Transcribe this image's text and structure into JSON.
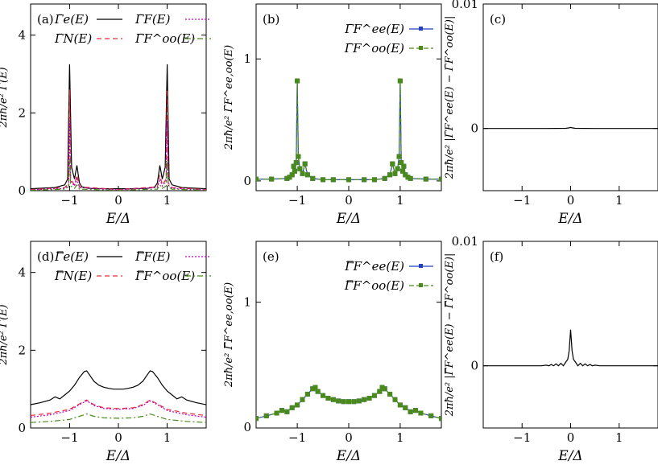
{
  "chart_data": [
    {
      "panel": "(a)",
      "type": "line",
      "xlabel": "E/Δ",
      "ylabel": "2πħ/e² Γ̄(E)",
      "xlim": [
        -1.8,
        1.8
      ],
      "ylim": [
        0,
        4.8
      ],
      "xticks": [
        -1,
        0,
        1
      ],
      "xtick_labels": [
        "−1",
        "0",
        "1"
      ],
      "yticks": [
        0,
        2,
        4
      ],
      "ytick_labels": [
        "0",
        "2",
        "4"
      ],
      "legend_placement": "top",
      "series": [
        {
          "name": "Γ̄e(E)",
          "color": "#000000",
          "dash": "",
          "marker": "",
          "x": [
            -1.8,
            -1.3,
            -1.1,
            -1.04,
            -1.0,
            -0.96,
            -0.9,
            -0.85,
            -0.8,
            -0.75,
            -0.6,
            -0.3,
            0,
            0.3,
            0.6,
            0.75,
            0.8,
            0.85,
            0.9,
            0.96,
            1.0,
            1.04,
            1.1,
            1.3,
            1.8
          ],
          "y": [
            0.05,
            0.08,
            0.15,
            0.3,
            3.25,
            0.6,
            0.3,
            0.65,
            0.2,
            0.1,
            0.06,
            0.05,
            0.05,
            0.05,
            0.06,
            0.1,
            0.2,
            0.65,
            0.3,
            0.6,
            3.25,
            0.3,
            0.15,
            0.08,
            0.05
          ]
        },
        {
          "name": "Γ̄N(E)",
          "color": "#e0303a",
          "dash": "6,4",
          "marker": "",
          "x": [
            -1.8,
            -1.1,
            -1.02,
            -1.0,
            -0.98,
            -0.9,
            -0.85,
            -0.8,
            0,
            0.8,
            0.85,
            0.9,
            0.98,
            1.0,
            1.02,
            1.1,
            1.8
          ],
          "y": [
            0.03,
            0.08,
            0.2,
            2.6,
            0.3,
            0.15,
            0.4,
            0.1,
            0.03,
            0.1,
            0.4,
            0.15,
            0.3,
            2.6,
            0.2,
            0.08,
            0.03
          ]
        },
        {
          "name": "Γ̄F(E)",
          "color": "#c000c0",
          "dash": "2,2",
          "marker": "",
          "x": [
            -1.8,
            -1.1,
            -1.02,
            -1.0,
            -0.98,
            -0.9,
            -0.85,
            -0.8,
            0,
            0.8,
            0.85,
            0.9,
            0.98,
            1.0,
            1.02,
            1.1,
            1.8
          ],
          "y": [
            0.02,
            0.06,
            0.15,
            1.8,
            0.25,
            0.12,
            0.3,
            0.08,
            0.02,
            0.08,
            0.3,
            0.12,
            0.25,
            1.8,
            0.15,
            0.06,
            0.02
          ]
        },
        {
          "name": "Γ̄F^oo(E)",
          "color": "#4a8a1a",
          "dash": "7,3,2,3",
          "marker": "",
          "x": [
            -1.8,
            -1.1,
            -1.02,
            -1.0,
            -0.98,
            -0.9,
            -0.85,
            -0.8,
            0,
            0.8,
            0.85,
            0.9,
            0.98,
            1.0,
            1.02,
            1.1,
            1.8
          ],
          "y": [
            0.01,
            0.04,
            0.1,
            0.8,
            0.12,
            0.06,
            0.15,
            0.04,
            0.01,
            0.04,
            0.15,
            0.06,
            0.12,
            0.8,
            0.1,
            0.04,
            0.01
          ]
        }
      ]
    },
    {
      "panel": "(b)",
      "type": "line",
      "xlabel": "E/Δ",
      "ylabel": "2πħ/e² Γ̄F^ee,oo(E)",
      "xlim": [
        -1.8,
        1.8
      ],
      "ylim": [
        -0.08,
        1.45
      ],
      "xticks": [
        -1,
        0,
        1
      ],
      "xtick_labels": [
        "−1",
        "0",
        "1"
      ],
      "yticks": [
        0,
        1
      ],
      "ytick_labels": [
        "0",
        "1"
      ],
      "legend_placement": "top-right",
      "series": [
        {
          "name": "Γ̄F^ee(E)",
          "color": "#2040c0",
          "dash": "",
          "marker": "square",
          "x": [
            -1.8,
            -1.5,
            -1.2,
            -1.15,
            -1.1,
            -1.07,
            -1.05,
            -1.02,
            -1.0,
            -0.98,
            -0.95,
            -0.9,
            -0.85,
            -0.8,
            -0.7,
            -0.5,
            -0.3,
            0,
            0.3,
            0.5,
            0.7,
            0.8,
            0.85,
            0.9,
            0.95,
            0.98,
            1.0,
            1.02,
            1.05,
            1.07,
            1.1,
            1.15,
            1.2,
            1.5,
            1.8
          ],
          "y": [
            0.015,
            0.015,
            0.02,
            0.03,
            0.05,
            0.12,
            0.08,
            0.15,
            0.82,
            0.2,
            0.1,
            0.06,
            0.14,
            0.05,
            0.02,
            0.01,
            0.01,
            0.01,
            0.01,
            0.01,
            0.02,
            0.05,
            0.14,
            0.06,
            0.1,
            0.2,
            0.82,
            0.15,
            0.08,
            0.12,
            0.05,
            0.03,
            0.02,
            0.015,
            0.015
          ]
        },
        {
          "name": "Γ̄F^oo(E)",
          "color": "#4a8a1a",
          "dash": "6,3",
          "marker": "square",
          "x": [
            -1.8,
            -1.5,
            -1.2,
            -1.15,
            -1.1,
            -1.07,
            -1.05,
            -1.02,
            -1.0,
            -0.98,
            -0.95,
            -0.9,
            -0.85,
            -0.8,
            -0.7,
            -0.5,
            -0.3,
            0,
            0.3,
            0.5,
            0.7,
            0.8,
            0.85,
            0.9,
            0.95,
            0.98,
            1.0,
            1.02,
            1.05,
            1.07,
            1.1,
            1.15,
            1.2,
            1.5,
            1.8
          ],
          "y": [
            0.015,
            0.015,
            0.02,
            0.03,
            0.05,
            0.12,
            0.08,
            0.15,
            0.82,
            0.2,
            0.1,
            0.06,
            0.14,
            0.05,
            0.02,
            0.01,
            0.01,
            0.01,
            0.01,
            0.01,
            0.02,
            0.05,
            0.14,
            0.06,
            0.1,
            0.2,
            0.82,
            0.15,
            0.08,
            0.12,
            0.05,
            0.03,
            0.02,
            0.015,
            0.015
          ]
        }
      ]
    },
    {
      "panel": "(c)",
      "type": "line",
      "xlabel": "E/Δ",
      "ylabel": "2πħ/e² |Γ̄F^ee(E) − Γ̄F^oo(E)|",
      "xlim": [
        -1.8,
        1.8
      ],
      "ylim": [
        -0.005,
        0.01
      ],
      "xticks": [
        -1,
        0,
        1
      ],
      "xtick_labels": [
        "−1",
        "0",
        "1"
      ],
      "yticks": [
        0,
        0.01
      ],
      "ytick_labels": [
        "0",
        "0.01"
      ],
      "series": [
        {
          "name": "",
          "color": "#000000",
          "dash": "",
          "marker": "",
          "x": [
            -1.8,
            -0.5,
            -0.1,
            -0.04,
            0,
            0.04,
            0.1,
            0.5,
            1.8
          ],
          "y": [
            0,
            0,
            1e-05,
            4e-05,
            8e-05,
            4e-05,
            1e-05,
            0,
            0
          ]
        }
      ]
    },
    {
      "panel": "(d)",
      "type": "line",
      "xlabel": "E/Δ",
      "ylabel": "2πħ/e² Γ̿(E)",
      "xlim": [
        -1.8,
        1.8
      ],
      "ylim": [
        0,
        4.8
      ],
      "xticks": [
        -1,
        0,
        1
      ],
      "xtick_labels": [
        "−1",
        "0",
        "1"
      ],
      "yticks": [
        0,
        2,
        4
      ],
      "ytick_labels": [
        "0",
        "2",
        "4"
      ],
      "legend_placement": "top",
      "series": [
        {
          "name": "Γ̿e(E)",
          "color": "#000000",
          "dash": "",
          "marker": "",
          "x": [
            -1.8,
            -1.6,
            -1.4,
            -1.3,
            -1.2,
            -1.1,
            -1.0,
            -0.9,
            -0.8,
            -0.7,
            -0.65,
            -0.6,
            -0.5,
            -0.4,
            -0.3,
            -0.2,
            -0.1,
            0,
            0.1,
            0.2,
            0.3,
            0.4,
            0.5,
            0.6,
            0.65,
            0.7,
            0.8,
            0.9,
            1.0,
            1.1,
            1.2,
            1.3,
            1.4,
            1.6,
            1.8
          ],
          "y": [
            0.6,
            0.65,
            0.72,
            0.8,
            0.75,
            0.85,
            0.95,
            1.1,
            1.3,
            1.45,
            1.47,
            1.38,
            1.2,
            1.1,
            1.05,
            1.02,
            1.0,
            1.0,
            1.0,
            1.02,
            1.05,
            1.1,
            1.2,
            1.38,
            1.47,
            1.45,
            1.3,
            1.1,
            0.95,
            0.85,
            0.75,
            0.8,
            0.72,
            0.65,
            0.6
          ]
        },
        {
          "name": "Γ̿N(E)",
          "color": "#e0303a",
          "dash": "6,4",
          "marker": "",
          "x": [
            -1.8,
            -1.4,
            -1.0,
            -0.8,
            -0.65,
            -0.5,
            -0.3,
            0,
            0.3,
            0.5,
            0.65,
            0.8,
            1.0,
            1.4,
            1.8
          ],
          "y": [
            0.32,
            0.38,
            0.48,
            0.62,
            0.72,
            0.6,
            0.52,
            0.5,
            0.52,
            0.6,
            0.72,
            0.62,
            0.48,
            0.38,
            0.32
          ]
        },
        {
          "name": "Γ̿F(E)",
          "color": "#c000c0",
          "dash": "2,2",
          "marker": "",
          "x": [
            -1.8,
            -1.4,
            -1.0,
            -0.8,
            -0.65,
            -0.5,
            -0.3,
            0,
            0.3,
            0.5,
            0.65,
            0.8,
            1.0,
            1.4,
            1.8
          ],
          "y": [
            0.28,
            0.34,
            0.45,
            0.6,
            0.7,
            0.58,
            0.5,
            0.48,
            0.5,
            0.58,
            0.7,
            0.6,
            0.45,
            0.34,
            0.28
          ]
        },
        {
          "name": "Γ̿F^oo(E)",
          "color": "#4a8a1a",
          "dash": "7,3,2,3",
          "marker": "",
          "x": [
            -1.8,
            -1.4,
            -1.0,
            -0.8,
            -0.65,
            -0.5,
            -0.3,
            0,
            0.3,
            0.5,
            0.65,
            0.8,
            1.0,
            1.4,
            1.8
          ],
          "y": [
            0.14,
            0.17,
            0.22,
            0.3,
            0.36,
            0.3,
            0.26,
            0.25,
            0.26,
            0.3,
            0.36,
            0.3,
            0.22,
            0.17,
            0.14
          ]
        }
      ]
    },
    {
      "panel": "(e)",
      "type": "line",
      "xlabel": "E/Δ",
      "ylabel": "2πħ/e² Γ̿F^ee,oo(E)",
      "xlim": [
        -1.8,
        1.8
      ],
      "ylim": [
        0.07,
        1.45
      ],
      "xticks": [
        -1,
        0,
        1
      ],
      "xtick_labels": [
        "−1",
        "0",
        "1"
      ],
      "yticks": [
        1
      ],
      "ytick_labels": [
        "1"
      ],
      "extra_ytick_labels": [
        {
          "value": 0.07,
          "label": "0"
        }
      ],
      "legend_placement": "top-right",
      "series": [
        {
          "name": "Γ̿F^ee(E)",
          "color": "#2040c0",
          "dash": "",
          "marker": "square",
          "x": [
            -1.8,
            -1.6,
            -1.4,
            -1.3,
            -1.2,
            -1.1,
            -1.0,
            -0.9,
            -0.8,
            -0.7,
            -0.65,
            -0.6,
            -0.5,
            -0.4,
            -0.3,
            -0.2,
            -0.1,
            0,
            0.1,
            0.2,
            0.3,
            0.4,
            0.5,
            0.6,
            0.65,
            0.7,
            0.8,
            0.9,
            1.0,
            1.1,
            1.2,
            1.3,
            1.4,
            1.6,
            1.8
          ],
          "y": [
            0.14,
            0.16,
            0.18,
            0.2,
            0.19,
            0.22,
            0.24,
            0.28,
            0.32,
            0.36,
            0.37,
            0.34,
            0.31,
            0.29,
            0.28,
            0.27,
            0.265,
            0.265,
            0.265,
            0.27,
            0.28,
            0.29,
            0.31,
            0.34,
            0.37,
            0.36,
            0.32,
            0.28,
            0.24,
            0.22,
            0.19,
            0.2,
            0.18,
            0.16,
            0.14
          ]
        },
        {
          "name": "Γ̿F^oo(E)",
          "color": "#4a8a1a",
          "dash": "6,3",
          "marker": "square",
          "x": [
            -1.8,
            -1.6,
            -1.4,
            -1.3,
            -1.2,
            -1.1,
            -1.0,
            -0.9,
            -0.8,
            -0.7,
            -0.65,
            -0.6,
            -0.5,
            -0.4,
            -0.3,
            -0.2,
            -0.1,
            0,
            0.1,
            0.2,
            0.3,
            0.4,
            0.5,
            0.6,
            0.65,
            0.7,
            0.8,
            0.9,
            1.0,
            1.1,
            1.2,
            1.3,
            1.4,
            1.6,
            1.8
          ],
          "y": [
            0.14,
            0.16,
            0.18,
            0.2,
            0.19,
            0.22,
            0.24,
            0.28,
            0.32,
            0.36,
            0.37,
            0.34,
            0.31,
            0.29,
            0.28,
            0.27,
            0.265,
            0.265,
            0.265,
            0.27,
            0.28,
            0.29,
            0.31,
            0.34,
            0.37,
            0.36,
            0.32,
            0.28,
            0.24,
            0.22,
            0.19,
            0.2,
            0.18,
            0.16,
            0.14
          ]
        }
      ]
    },
    {
      "panel": "(f)",
      "type": "line",
      "xlabel": "E/Δ",
      "ylabel": "2πħ/e² |Γ̿F^ee(E) − Γ̿F^oo(E)|",
      "xlim": [
        -1.8,
        1.8
      ],
      "ylim": [
        -0.005,
        0.01
      ],
      "xticks": [
        -1,
        0,
        1
      ],
      "xtick_labels": [
        "−1",
        "0",
        "1"
      ],
      "yticks": [
        0,
        0.01
      ],
      "ytick_labels": [
        "0",
        "0.01"
      ],
      "series": [
        {
          "name": "",
          "color": "#000000",
          "dash": "",
          "marker": "",
          "x": [
            -1.8,
            -0.6,
            -0.5,
            -0.45,
            -0.4,
            -0.35,
            -0.3,
            -0.25,
            -0.2,
            -0.15,
            -0.1,
            -0.06,
            -0.03,
            0,
            0.03,
            0.06,
            0.1,
            0.15,
            0.2,
            0.25,
            0.3,
            0.35,
            0.4,
            0.45,
            0.5,
            0.6,
            1.8
          ],
          "y": [
            0,
            0,
            5e-05,
            0,
            0.0001,
            0,
            0.00015,
            0,
            0.0002,
            0,
            0.0003,
            0.0005,
            0.0012,
            0.0029,
            0.0012,
            0.0005,
            0.0003,
            0,
            0.0002,
            0,
            0.00015,
            0,
            0.0001,
            0,
            5e-05,
            0,
            0
          ]
        }
      ]
    }
  ]
}
